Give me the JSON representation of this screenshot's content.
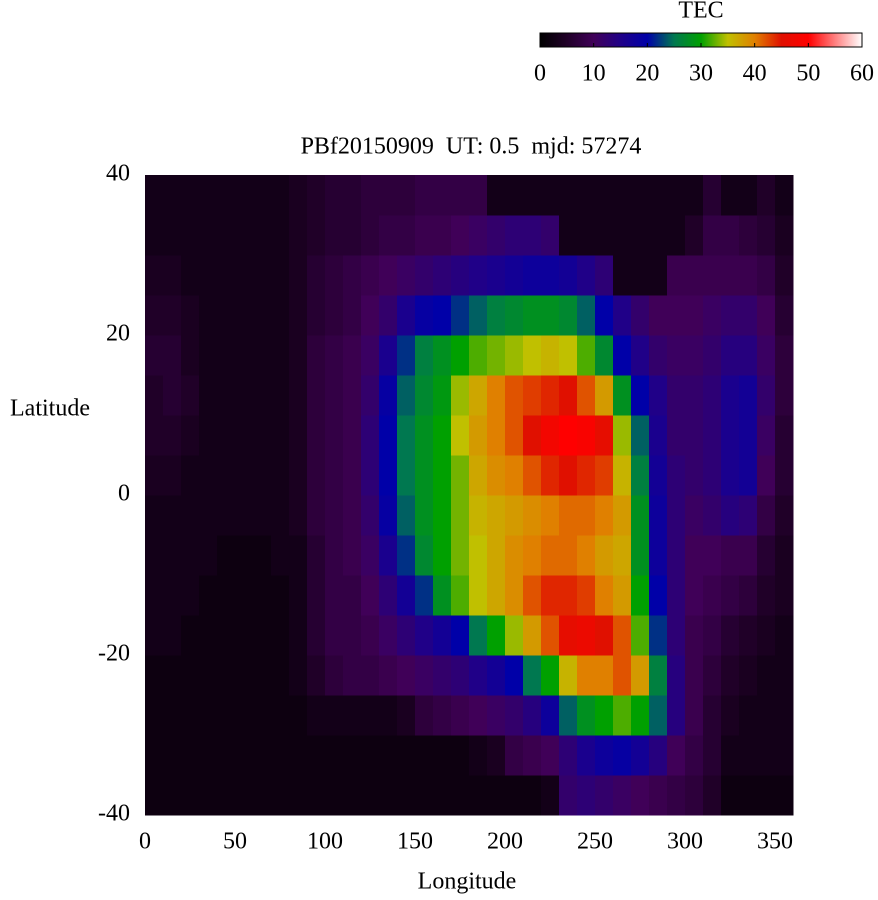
{
  "chart_data": {
    "type": "heatmap",
    "title": "PBf20150909  UT: 0.5  mjd: 57274",
    "x_label": "Longitude",
    "y_label": "Latitude",
    "x": [
      5,
      15,
      25,
      35,
      45,
      55,
      65,
      75,
      85,
      95,
      105,
      115,
      125,
      135,
      145,
      155,
      165,
      175,
      185,
      195,
      205,
      215,
      225,
      235,
      245,
      255,
      265,
      275,
      285,
      295,
      305,
      315,
      325,
      335,
      345,
      355
    ],
    "y": [
      -37.5,
      -32.5,
      -27.5,
      -22.5,
      -17.5,
      -12.5,
      -7.5,
      -2.5,
      2.5,
      7.5,
      12.5,
      17.5,
      22.5,
      27.5,
      32.5,
      37.5
    ],
    "values": [
      [
        2,
        2,
        2,
        2,
        2,
        2,
        2,
        2,
        2,
        2,
        2,
        2,
        2,
        2,
        2,
        2,
        2,
        2,
        2,
        2,
        2,
        2,
        3,
        12,
        13,
        12,
        11,
        10,
        9,
        8,
        7,
        5,
        2,
        2,
        2,
        2
      ],
      [
        2,
        2,
        2,
        2,
        2,
        2,
        2,
        2,
        2,
        2,
        2,
        2,
        2,
        2,
        2,
        2,
        2,
        2,
        3,
        4,
        8,
        9,
        10,
        13,
        16,
        18,
        19,
        17,
        14,
        10,
        8,
        6,
        3,
        3,
        3,
        3
      ],
      [
        2,
        2,
        2,
        2,
        2,
        2,
        2,
        2,
        2,
        3,
        3,
        3,
        3,
        3,
        4,
        7,
        8,
        9,
        10,
        11,
        12,
        14,
        18,
        24,
        28,
        30,
        32,
        30,
        24,
        14,
        9,
        6,
        4,
        3,
        3,
        3
      ],
      [
        2,
        2,
        2,
        2,
        2,
        2,
        2,
        2,
        3,
        5,
        7,
        8,
        8,
        9,
        10,
        11,
        12,
        13,
        15,
        17,
        20,
        25,
        30,
        36,
        40,
        40,
        42,
        38,
        26,
        14,
        9,
        7,
        5,
        4,
        3,
        3
      ],
      [
        3,
        3,
        2,
        2,
        2,
        2,
        2,
        2,
        3,
        6,
        8,
        8,
        9,
        11,
        13,
        15,
        17,
        20,
        25,
        30,
        34,
        38,
        42,
        46,
        47,
        45,
        42,
        32,
        22,
        13,
        9,
        8,
        6,
        5,
        4,
        3
      ],
      [
        3,
        3,
        3,
        2,
        2,
        2,
        2,
        2,
        3,
        6,
        8,
        8,
        10,
        13,
        17,
        22,
        28,
        32,
        35,
        37,
        39,
        42,
        44,
        44,
        43,
        40,
        38,
        30,
        20,
        13,
        10,
        9,
        8,
        7,
        5,
        4
      ],
      [
        3,
        3,
        3,
        3,
        2,
        2,
        2,
        3,
        3,
        6,
        8,
        9,
        11,
        16,
        22,
        27,
        30,
        33,
        35,
        37,
        39,
        40,
        41,
        41,
        40,
        38,
        37,
        28,
        18,
        13,
        10,
        10,
        9,
        9,
        6,
        4
      ],
      [
        3,
        3,
        3,
        3,
        3,
        3,
        3,
        3,
        4,
        7,
        8,
        9,
        12,
        19,
        24,
        28,
        30,
        33,
        36,
        37,
        38,
        39,
        40,
        41,
        41,
        40,
        38,
        28,
        18,
        13,
        11,
        12,
        14,
        13,
        8,
        5
      ],
      [
        4,
        4,
        3,
        3,
        3,
        3,
        3,
        3,
        4,
        7,
        8,
        9,
        13,
        20,
        25,
        28,
        30,
        33,
        37,
        39,
        40,
        42,
        44,
        45,
        44,
        43,
        36,
        26,
        17,
        13,
        12,
        13,
        16,
        17,
        10,
        6
      ],
      [
        5,
        5,
        4,
        3,
        3,
        3,
        3,
        3,
        4,
        7,
        8,
        9,
        13,
        20,
        25,
        28,
        30,
        35,
        38,
        40,
        42,
        45,
        48,
        50,
        49,
        46,
        34,
        24,
        16,
        12,
        12,
        13,
        16,
        17,
        11,
        6
      ],
      [
        5,
        6,
        5,
        3,
        3,
        3,
        3,
        3,
        4,
        7,
        8,
        9,
        12,
        19,
        24,
        27,
        29,
        34,
        37,
        40,
        42,
        43,
        44,
        45,
        42,
        38,
        28,
        20,
        15,
        12,
        12,
        13,
        16,
        17,
        12,
        7
      ],
      [
        6,
        6,
        4,
        3,
        3,
        3,
        3,
        3,
        4,
        7,
        8,
        9,
        11,
        16,
        22,
        26,
        28,
        30,
        32,
        33,
        34,
        35,
        36,
        35,
        32,
        27,
        20,
        15,
        12,
        11,
        11,
        12,
        14,
        14,
        11,
        7
      ],
      [
        5,
        5,
        4,
        3,
        3,
        3,
        3,
        3,
        4,
        6,
        7,
        8,
        10,
        12,
        16,
        19,
        20,
        22,
        24,
        26,
        27,
        28,
        28,
        27,
        24,
        20,
        15,
        12,
        10,
        10,
        10,
        11,
        12,
        12,
        10,
        6
      ],
      [
        4,
        4,
        3,
        3,
        3,
        3,
        3,
        3,
        4,
        6,
        7,
        8,
        9,
        10,
        11,
        12,
        13,
        14,
        15,
        16,
        17,
        18,
        18,
        17,
        15,
        13,
        3,
        3,
        3,
        9,
        9,
        9,
        9,
        9,
        8,
        5
      ],
      [
        3,
        3,
        3,
        3,
        3,
        3,
        3,
        3,
        4,
        5,
        6,
        6,
        7,
        8,
        8,
        9,
        9,
        10,
        11,
        12,
        13,
        13,
        12,
        3,
        3,
        3,
        3,
        3,
        3,
        3,
        5,
        8,
        8,
        7,
        6,
        4
      ],
      [
        3,
        3,
        3,
        3,
        3,
        3,
        3,
        3,
        4,
        5,
        6,
        6,
        7,
        7,
        7,
        8,
        8,
        8,
        8,
        3,
        3,
        3,
        3,
        3,
        3,
        3,
        3,
        3,
        3,
        3,
        3,
        6,
        3,
        3,
        5,
        3
      ]
    ],
    "xlim": [
      0,
      360
    ],
    "ylim": [
      -40,
      40
    ],
    "xticks": [
      0,
      50,
      100,
      150,
      200,
      250,
      300,
      350
    ],
    "yticks": [
      -40,
      -20,
      0,
      20,
      40
    ],
    "colorbar_label": "TEC",
    "clim": [
      0,
      60
    ],
    "cticks": [
      0,
      10,
      20,
      30,
      40,
      50,
      60
    ],
    "colormap": [
      "#000000",
      "#200028",
      "#400058",
      "#200088",
      "#0000a8",
      "#007850",
      "#00a000",
      "#c0c000",
      "#e08000",
      "#e01000",
      "#ff0000",
      "#ff8080",
      "#ffffff"
    ]
  }
}
